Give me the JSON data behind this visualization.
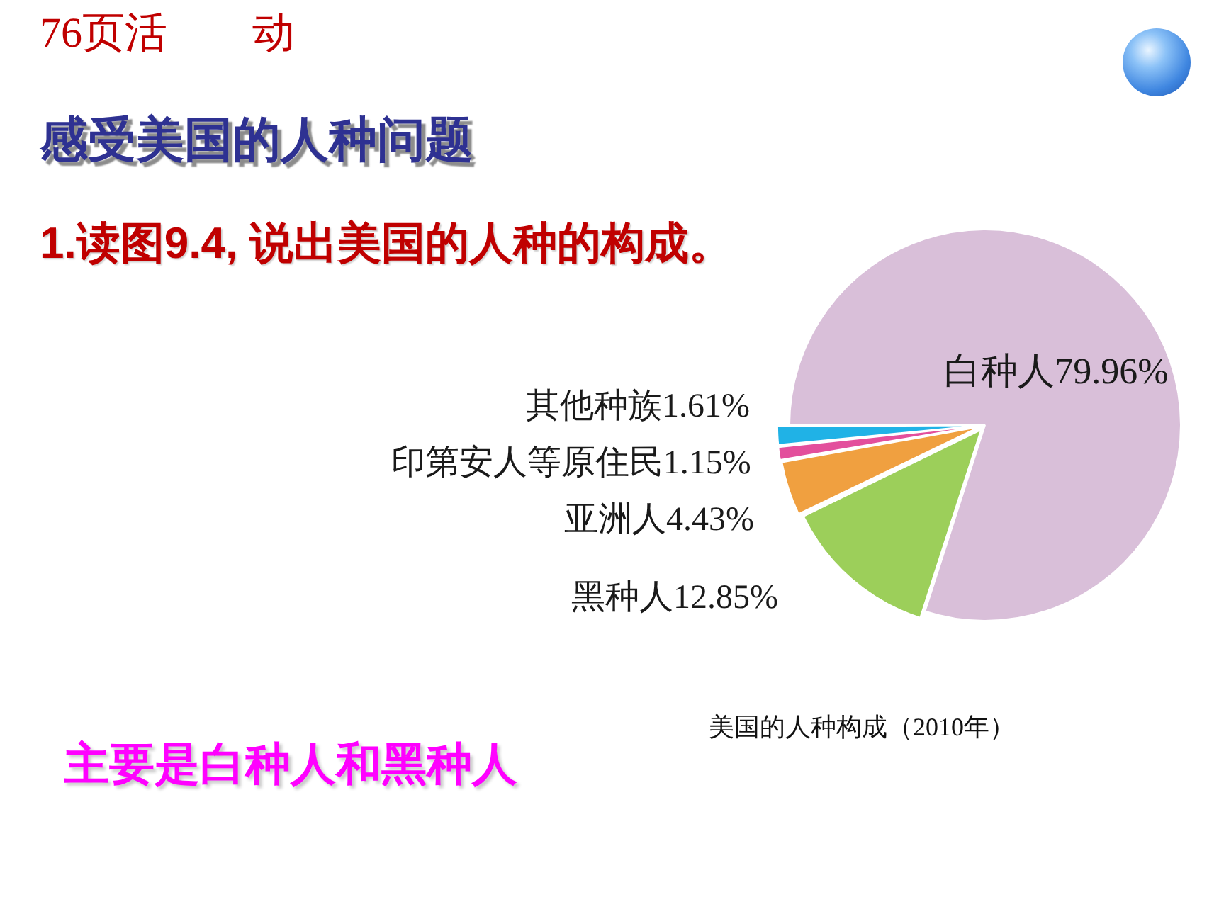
{
  "chart_data": {
    "type": "pie",
    "title": "美国的人种构成（2010年）",
    "annotations": [
      "76页活　　动",
      "感受美国的人种问题",
      "1.读图9.4, 说出美国的人种的构成。",
      "主要是白种人和黑种人"
    ],
    "categories": [
      "白种人",
      "黑种人",
      "亚洲人",
      "印第安人等原住民",
      "其他种族"
    ],
    "values": [
      79.96,
      12.85,
      4.43,
      1.15,
      1.61
    ],
    "value_labels": [
      "79.96%",
      "12.85%",
      "4.43%",
      "1.15%",
      "1.61%"
    ],
    "colors": [
      "#d9bfd9",
      "#9ccf5a",
      "#f0a040",
      "#e34f9c",
      "#20b2e6"
    ]
  }
}
